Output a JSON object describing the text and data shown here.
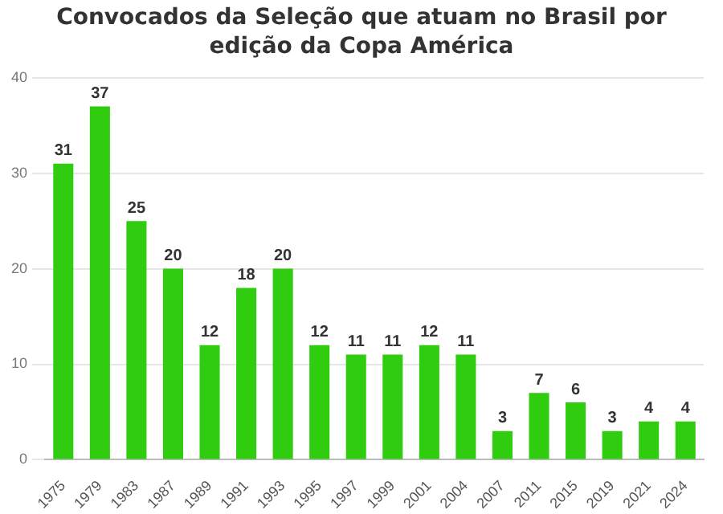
{
  "chart_data": {
    "type": "bar",
    "title": "Convocados da Seleção que atuam no Brasil por edição da Copa América",
    "categories": [
      "1975",
      "1979",
      "1983",
      "1987",
      "1989",
      "1991",
      "1993",
      "1995",
      "1997",
      "1999",
      "2001",
      "2004",
      "2007",
      "2011",
      "2015",
      "2019",
      "2021",
      "2024"
    ],
    "values": [
      31,
      37,
      25,
      20,
      12,
      18,
      20,
      12,
      11,
      11,
      12,
      11,
      3,
      7,
      6,
      3,
      4,
      4
    ],
    "color": "#2fcc0f",
    "ylim": [
      0,
      40
    ],
    "yticks": [
      0,
      10,
      20,
      30,
      40
    ],
    "grid": "y",
    "data_labels": true
  }
}
